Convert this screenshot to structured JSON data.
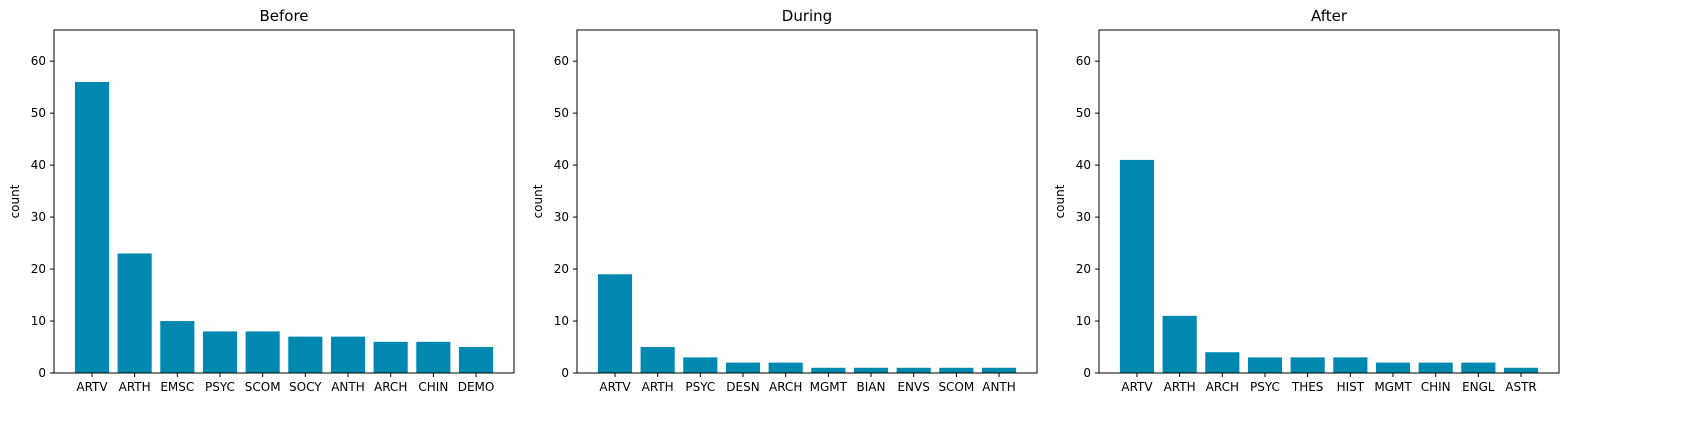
{
  "chart_data": [
    {
      "type": "bar",
      "title": "Before",
      "xlabel": "",
      "ylabel": "count",
      "ylim": [
        0,
        66
      ],
      "yticks": [
        0,
        10,
        20,
        30,
        40,
        50,
        60
      ],
      "grid": false,
      "bar_color": "#0088b0",
      "categories": [
        "ARTV",
        "ARTH",
        "EMSC",
        "PSYC",
        "SCOM",
        "SOCY",
        "ANTH",
        "ARCH",
        "CHIN",
        "DEMO"
      ],
      "values": [
        56,
        23,
        10,
        8,
        8,
        7,
        7,
        6,
        6,
        5
      ]
    },
    {
      "type": "bar",
      "title": "During",
      "xlabel": "",
      "ylabel": "count",
      "ylim": [
        0,
        66
      ],
      "yticks": [
        0,
        10,
        20,
        30,
        40,
        50,
        60
      ],
      "grid": false,
      "bar_color": "#0088b0",
      "categories": [
        "ARTV",
        "ARTH",
        "PSYC",
        "DESN",
        "ARCH",
        "MGMT",
        "BIAN",
        "ENVS",
        "SCOM",
        "ANTH"
      ],
      "values": [
        19,
        5,
        3,
        2,
        2,
        1,
        1,
        1,
        1,
        1
      ]
    },
    {
      "type": "bar",
      "title": "After",
      "xlabel": "",
      "ylabel": "count",
      "ylim": [
        0,
        66
      ],
      "yticks": [
        0,
        10,
        20,
        30,
        40,
        50,
        60
      ],
      "grid": false,
      "bar_color": "#0088b0",
      "categories": [
        "ARTV",
        "ARTH",
        "ARCH",
        "PSYC",
        "THES",
        "HIST",
        "MGMT",
        "CHIN",
        "ENGL",
        "ASTR"
      ],
      "values": [
        41,
        11,
        4,
        3,
        3,
        3,
        2,
        2,
        2,
        1
      ]
    }
  ]
}
